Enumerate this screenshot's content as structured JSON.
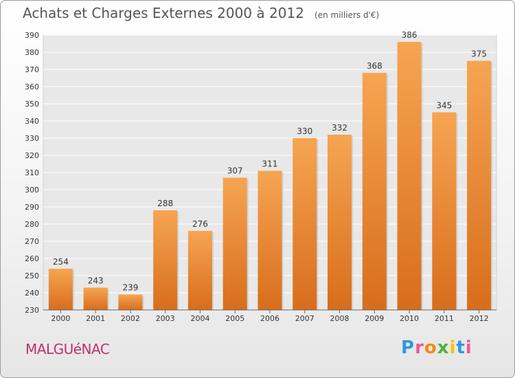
{
  "header": {
    "title": "Achats et Charges Externes 2000 à 2012",
    "unit": "(en milliers d'€)"
  },
  "commune": "MALGUéNAC",
  "brand": {
    "letters": [
      {
        "ch": "P",
        "color": "#2e9bd6"
      },
      {
        "ch": "r",
        "color": "#e65c9b"
      },
      {
        "ch": "o",
        "color": "#f08a1c"
      },
      {
        "ch": "x",
        "color": "#4ab338"
      },
      {
        "ch": "i",
        "color": "#f5c400"
      },
      {
        "ch": "t",
        "color": "#2e9bd6"
      },
      {
        "ch": "i",
        "color": "#e65c9b"
      }
    ]
  },
  "chart_data": {
    "type": "bar",
    "title": "Achats et Charges Externes 2000 à 2012",
    "categories": [
      "2000",
      "2001",
      "2002",
      "2003",
      "2004",
      "2005",
      "2006",
      "2007",
      "2008",
      "2009",
      "2010",
      "2011",
      "2012"
    ],
    "values": [
      254,
      243,
      239,
      288,
      276,
      307,
      311,
      330,
      332,
      368,
      386,
      345,
      375
    ],
    "ylim": [
      230,
      390
    ],
    "yticks": [
      230,
      240,
      250,
      260,
      270,
      280,
      290,
      300,
      310,
      320,
      330,
      340,
      350,
      360,
      370,
      380,
      390
    ],
    "grid": true,
    "bar_color": "#f0963e"
  }
}
